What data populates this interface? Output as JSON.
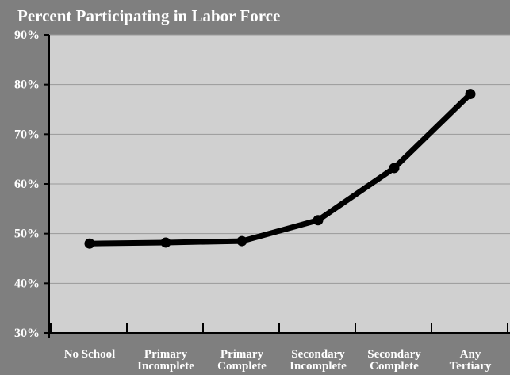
{
  "chart_data": {
    "type": "line",
    "title": "Percent Participating in Labor Force",
    "xlabel": "",
    "ylabel": "",
    "categories": [
      [
        "No School"
      ],
      [
        "Primary",
        "Incomplete"
      ],
      [
        "Primary",
        "Complete"
      ],
      [
        "Secondary",
        "Incomplete"
      ],
      [
        "Secondary",
        "Complete"
      ],
      [
        "Any",
        "Tertiary"
      ]
    ],
    "values": [
      48,
      48.2,
      48.5,
      52.7,
      63.2,
      78.1
    ],
    "ylim": [
      30,
      90
    ],
    "yticks": [
      30,
      40,
      50,
      60,
      70,
      80,
      90
    ],
    "ytick_labels": [
      "30%",
      "40%",
      "50%",
      "60%",
      "70%",
      "80%",
      "90%"
    ],
    "grid": true,
    "colors": {
      "background": "#7f7f7f",
      "plot_area": "#d0d0d0",
      "gridline": "#9a9a9a",
      "line": "#000000",
      "text": "#ffffff"
    }
  }
}
